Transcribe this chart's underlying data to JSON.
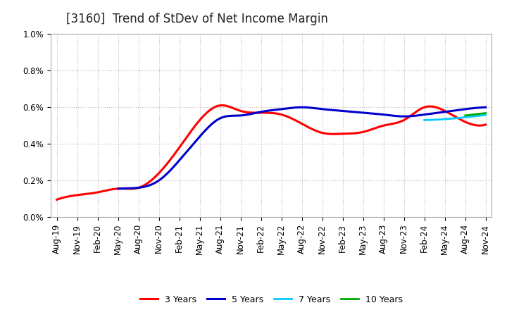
{
  "title": "[3160]  Trend of StDev of Net Income Margin",
  "x_labels": [
    "Aug-19",
    "Nov-19",
    "Feb-20",
    "May-20",
    "Aug-20",
    "Nov-20",
    "Feb-21",
    "May-21",
    "Aug-21",
    "Nov-21",
    "Feb-22",
    "May-22",
    "Aug-22",
    "Nov-22",
    "Feb-23",
    "May-23",
    "Aug-23",
    "Nov-23",
    "Feb-24",
    "May-24",
    "Aug-24",
    "Nov-24"
  ],
  "ylim": [
    0.0,
    0.01
  ],
  "yticks": [
    0.0,
    0.002,
    0.004,
    0.006,
    0.008,
    0.01
  ],
  "ytick_labels": [
    "0.0%",
    "0.2%",
    "0.4%",
    "0.6%",
    "0.8%",
    "1.0%"
  ],
  "series": {
    "3 Years": {
      "color": "#FF0000",
      "linewidth": 2.2,
      "values": [
        0.00095,
        0.0012,
        0.00135,
        0.00155,
        0.0016,
        0.0024,
        0.0038,
        0.0053,
        0.0061,
        0.0058,
        0.0057,
        0.0056,
        0.0051,
        0.0046,
        0.00455,
        0.00465,
        0.005,
        0.0053,
        0.006,
        0.0058,
        0.0052,
        0.00505
      ]
    },
    "5 Years": {
      "color": "#0000CC",
      "linewidth": 2.2,
      "values": [
        null,
        null,
        null,
        0.00155,
        0.0016,
        0.002,
        0.0031,
        0.0044,
        0.0054,
        0.00555,
        0.00575,
        0.0059,
        0.006,
        0.0059,
        0.0058,
        0.0057,
        0.0056,
        0.0055,
        0.0056,
        0.00575,
        0.0059,
        0.006
      ]
    },
    "7 Years": {
      "color": "#00CCFF",
      "linewidth": 2.0,
      "values": [
        null,
        null,
        null,
        null,
        null,
        null,
        null,
        null,
        null,
        null,
        null,
        null,
        null,
        null,
        null,
        null,
        null,
        null,
        0.0053,
        0.00535,
        0.00545,
        0.00558
      ]
    },
    "10 Years": {
      "color": "#00AA00",
      "linewidth": 2.0,
      "values": [
        null,
        null,
        null,
        null,
        null,
        null,
        null,
        null,
        null,
        null,
        null,
        null,
        null,
        null,
        null,
        null,
        null,
        null,
        null,
        null,
        0.00555,
        0.00568
      ]
    }
  },
  "legend_order": [
    "3 Years",
    "5 Years",
    "7 Years",
    "10 Years"
  ],
  "background_color": "#FFFFFF",
  "grid_color": "#AAAAAA",
  "title_fontsize": 12,
  "tick_fontsize": 8.5,
  "legend_fontsize": 9
}
